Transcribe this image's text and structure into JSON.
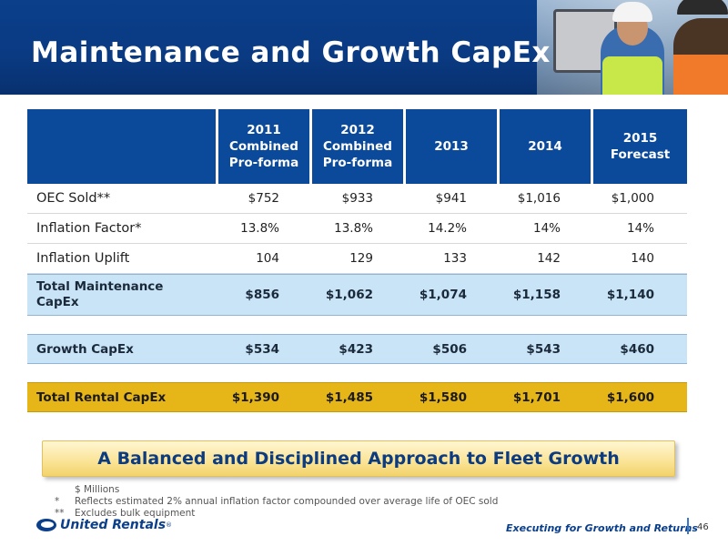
{
  "header": {
    "title": "Maintenance and Growth CapEx"
  },
  "table": {
    "columns": [
      {
        "line1": "2011",
        "line2": "Combined",
        "line3": "Pro-forma"
      },
      {
        "line1": "2012",
        "line2": "Combined",
        "line3": "Pro-forma"
      },
      {
        "line1": "2013",
        "line2": "",
        "line3": ""
      },
      {
        "line1": "2014",
        "line2": "",
        "line3": ""
      },
      {
        "line1": "2015",
        "line2": "Forecast",
        "line3": ""
      }
    ],
    "rows": [
      {
        "label": "OEC Sold**",
        "values": [
          "$752",
          "$933",
          "$941",
          "$1,016",
          "$1,000"
        ]
      },
      {
        "label": "Inflation Factor*",
        "values": [
          "13.8%",
          "13.8%",
          "14.2%",
          "14%",
          "14%"
        ]
      },
      {
        "label": "Inflation Uplift",
        "values": [
          "104",
          "129",
          "133",
          "142",
          "140"
        ]
      },
      {
        "label_line1": "Total Maintenance",
        "label_line2": "CapEx",
        "values": [
          "$856",
          "$1,062",
          "$1,074",
          "$1,158",
          "$1,140"
        ]
      },
      {
        "label": "Growth CapEx",
        "values": [
          "$534",
          "$423",
          "$506",
          "$543",
          "$460"
        ]
      },
      {
        "label": "Total Rental CapEx",
        "values": [
          "$1,390",
          "$1,485",
          "$1,580",
          "$1,701",
          "$1,600"
        ]
      }
    ]
  },
  "callout": "A Balanced and Disciplined Approach to Fleet Growth",
  "notes": {
    "units": "$ Millions",
    "note1_mark": "*",
    "note1": "Reflects estimated 2% annual inflation factor compounded over average life of OEC sold",
    "note2_mark": "**",
    "note2": "Excludes bulk equipment"
  },
  "footer": {
    "logo_text": "United Rentals",
    "logo_reg": "®",
    "tagline": "Executing for Growth and Returns",
    "page_number": "46"
  },
  "colors": {
    "header_blue": "#0b3f8a",
    "table_header": "#0b4a9a",
    "row_highlight_blue": "#c9e3f7",
    "row_highlight_gold": "#e6b619"
  }
}
